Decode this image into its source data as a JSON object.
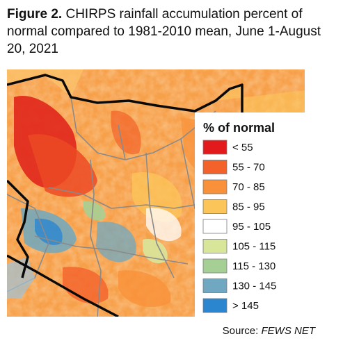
{
  "caption": {
    "figure_label": "Figure 2.",
    "text": "CHIRPS rainfall accumulation percent of normal compared to 1981-2010 mean, June 1-August 20, 2021"
  },
  "legend": {
    "title": "% of normal",
    "items": [
      {
        "label": "< 55",
        "color": "#e31a1c"
      },
      {
        "label": "55 - 70",
        "color": "#f2622a"
      },
      {
        "label": "70 - 85",
        "color": "#f9913a"
      },
      {
        "label": "85 - 95",
        "color": "#fcc55a"
      },
      {
        "label": "95 - 105",
        "color": "#ffffff"
      },
      {
        "label": "105 - 115",
        "color": "#d8e69a"
      },
      {
        "label": "115 - 130",
        "color": "#a6cf95"
      },
      {
        "label": "130 - 145",
        "color": "#6fa8c0"
      },
      {
        "label": "> 145",
        "color": "#2b86cf"
      }
    ]
  },
  "source": {
    "prefix": "Source: ",
    "name": "FEWS NET"
  }
}
